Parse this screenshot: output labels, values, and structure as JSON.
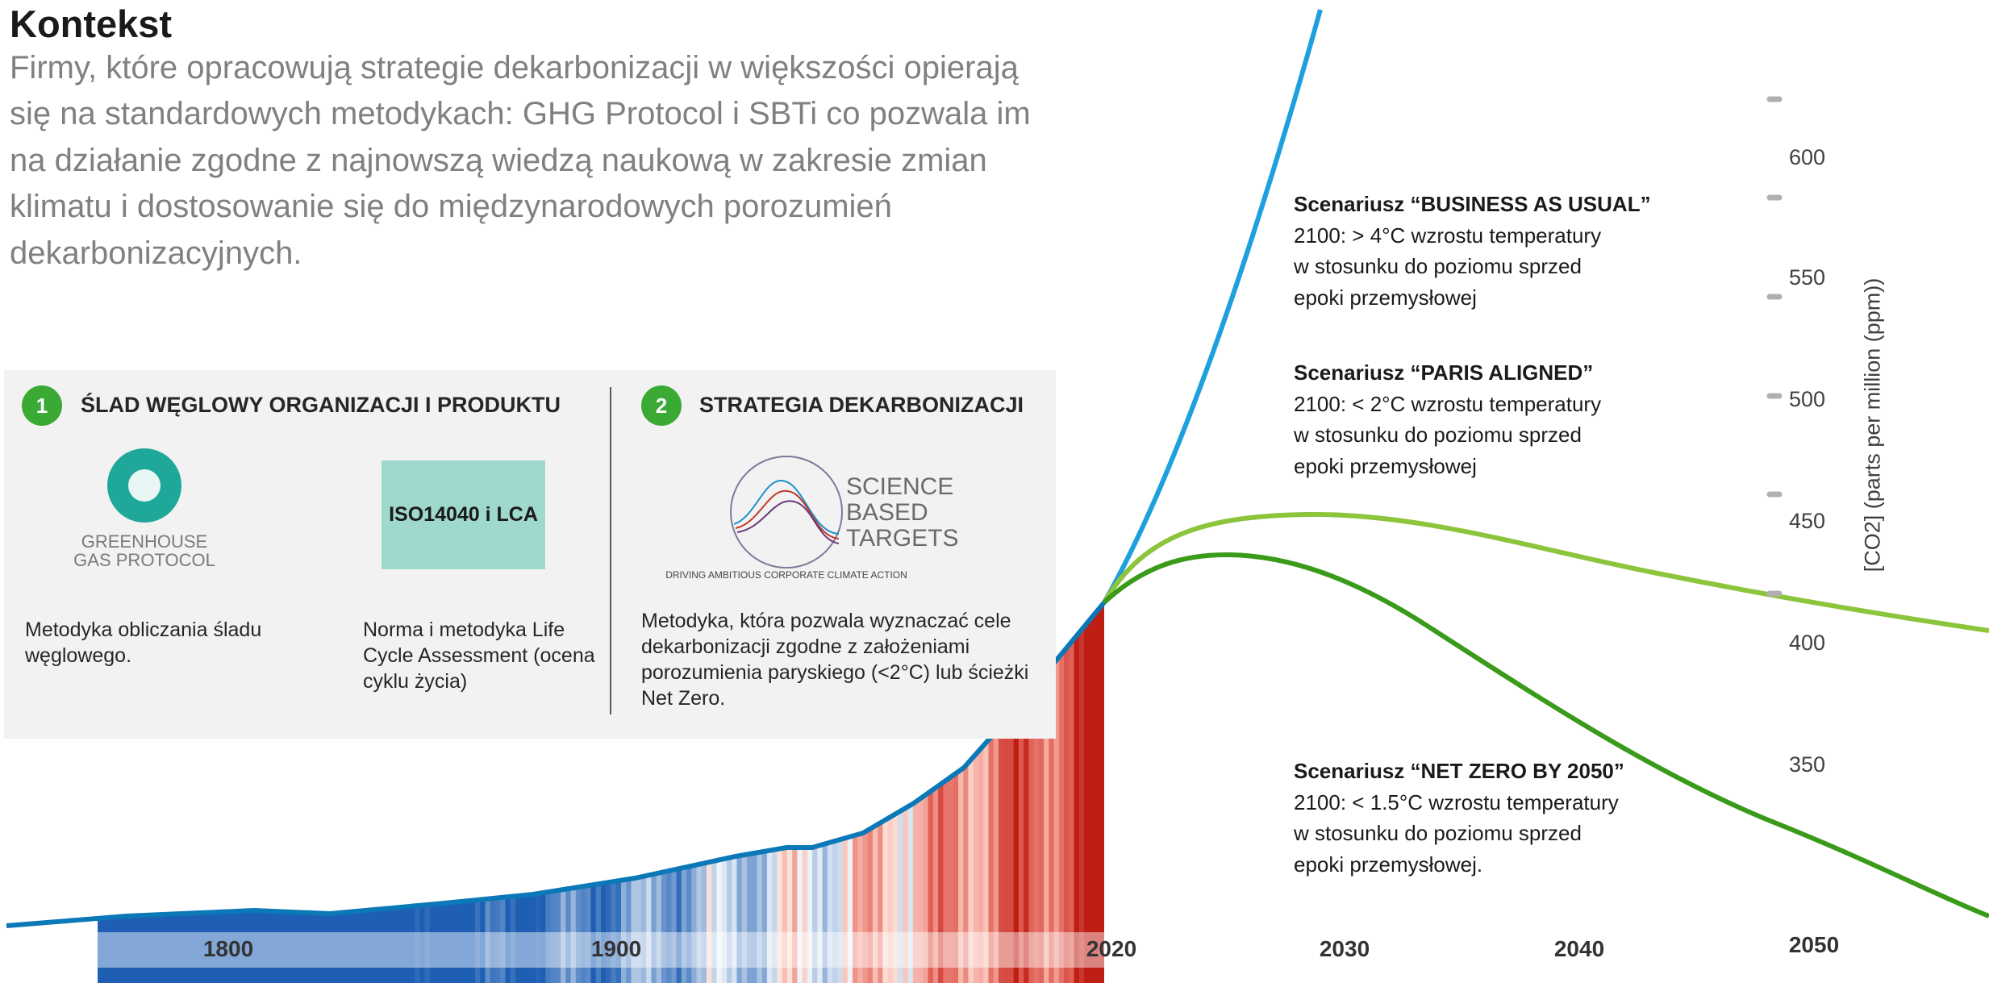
{
  "header": {
    "title": "Kontekst",
    "lines": [
      "Firmy, które opracowują strategie dekarbonizacji w większości opierają",
      "się na standardowych metodykach: GHG Protocol i SBTi co pozwala im",
      "na działanie zgodne z najnowszą wiedzą naukową w zakresie zmian",
      "klimatu i dostosowanie się do międzynarodowych porozumień",
      "dekarbonizacyjnych."
    ]
  },
  "panel": {
    "sections": [
      {
        "number": "1",
        "heading": "ŚLAD WĘGLOWY ORGANIZACJI I PRODUKTU",
        "items": [
          {
            "logo": [
              "GREENHOUSE",
              "GAS PROTOCOL"
            ],
            "description": "Metodyka obliczania śladu węglowego."
          },
          {
            "box_label": "ISO14040 i LCA",
            "description": "Norma i metodyka Life Cycle Assessment (ocena cyklu życia)"
          }
        ]
      },
      {
        "number": "2",
        "heading": "STRATEGIA DEKARBONIZACJI",
        "logo": {
          "lines": [
            "SCIENCE",
            "BASED",
            "TARGETS"
          ],
          "tagline": "DRIVING AMBITIOUS CORPORATE CLIMATE ACTION"
        },
        "description": "Metodyka, która pozwala wyznaczać cele dekarbonizacji zgodne z założeniami porozumienia paryskiego (<2°C) lub ścieżki Net Zero."
      }
    ]
  },
  "chart": {
    "axis_title": "[CO2] (parts per million (ppm))",
    "yticks": [
      600,
      550,
      500,
      450,
      400,
      350
    ],
    "xticks": [
      1800,
      1900,
      2020,
      2030,
      2040,
      2050
    ],
    "scenarios": [
      {
        "title": "Scenariusz “BUSINESS AS USUAL”",
        "lines": [
          "2100: > 4°C wzrostu temperatury",
          "w stosunku do poziomu sprzed",
          "epoki przemysłowej"
        ]
      },
      {
        "title": "Scenariusz “PARIS ALIGNED”",
        "lines": [
          "2100: < 2°C wzrostu temperatury",
          "w stosunku do poziomu sprzed",
          "epoki przemysłowej"
        ]
      },
      {
        "title": "Scenariusz “NET ZERO BY 2050”",
        "lines": [
          "2100: < 1.5°C wzrostu temperatury",
          "w stosunku do poziomu sprzed",
          "epoki przemysłowej."
        ]
      }
    ]
  }
}
